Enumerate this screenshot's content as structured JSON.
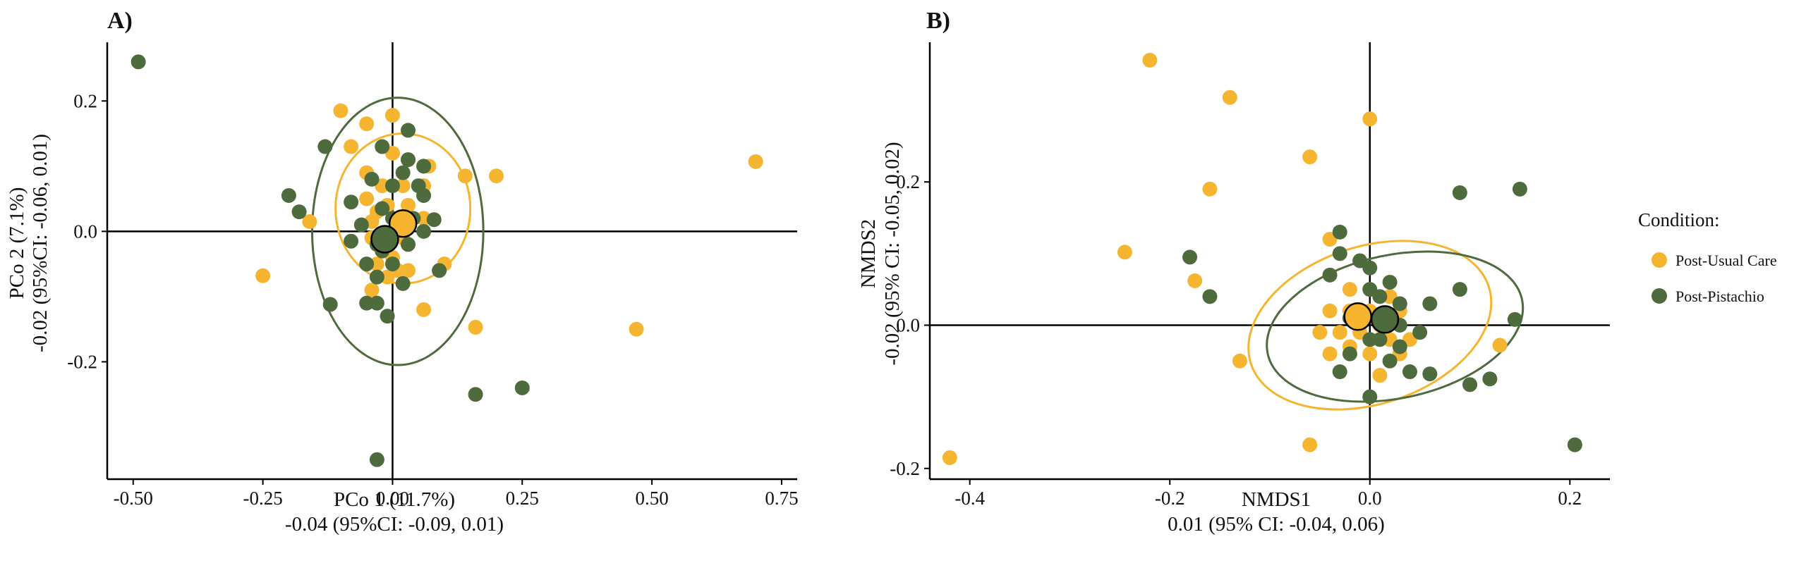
{
  "colors": {
    "usual_care": "#F6B530",
    "pistachio": "#4E6B3E",
    "axis": "#000000"
  },
  "legend": {
    "title": "Condition:",
    "items": [
      {
        "label": "Post-Usual Care",
        "color": "#F6B530"
      },
      {
        "label": "Post-Pistachio",
        "color": "#4E6B3E"
      }
    ]
  },
  "chart_data": [
    {
      "panel": "A)",
      "type": "scatter",
      "xlabel": "PCo 1 (11.7%)",
      "xlabel2": "-0.04 (95%CI: -0.09, 0.01)",
      "ylabel": "PCo 2 (7.1%)",
      "ylabel2": "-0.02 (95%CI: -0.06, 0.01)",
      "xlim": [
        -0.55,
        0.78
      ],
      "ylim": [
        -0.38,
        0.29
      ],
      "xticks": [
        -0.5,
        -0.25,
        0.0,
        0.25,
        0.5,
        0.75
      ],
      "xtick_labels": [
        "-0.50",
        "-0.25",
        "0.00",
        "0.25",
        "0.50",
        "0.75"
      ],
      "yticks": [
        -0.2,
        0.0,
        0.2
      ],
      "ytick_labels": [
        "-0.2",
        "0.0",
        "0.2"
      ],
      "series": [
        {
          "name": "Post-Usual Care",
          "color": "#F6B530",
          "points": [
            [
              -0.1,
              0.185
            ],
            [
              -0.05,
              0.165
            ],
            [
              0.0,
              0.178
            ],
            [
              -0.08,
              0.13
            ],
            [
              0.0,
              0.12
            ],
            [
              0.03,
              0.11
            ],
            [
              0.07,
              0.1
            ],
            [
              -0.05,
              0.09
            ],
            [
              -0.02,
              0.07
            ],
            [
              0.02,
              0.07
            ],
            [
              0.06,
              0.07
            ],
            [
              0.14,
              0.085
            ],
            [
              0.2,
              0.085
            ],
            [
              -0.05,
              0.05
            ],
            [
              -0.03,
              0.03
            ],
            [
              -0.01,
              0.04
            ],
            [
              0.03,
              0.04
            ],
            [
              0.06,
              0.02
            ],
            [
              -0.16,
              0.015
            ],
            [
              -0.04,
              0.015
            ],
            [
              0.0,
              0.0
            ],
            [
              0.02,
              -0.01
            ],
            [
              -0.04,
              -0.01
            ],
            [
              0.0,
              -0.04
            ],
            [
              -0.03,
              -0.05
            ],
            [
              0.01,
              -0.06
            ],
            [
              -0.03,
              -0.07
            ],
            [
              -0.01,
              -0.07
            ],
            [
              -0.04,
              -0.09
            ],
            [
              0.1,
              -0.05
            ],
            [
              0.03,
              -0.06
            ],
            [
              -0.25,
              -0.068
            ],
            [
              0.06,
              -0.12
            ],
            [
              0.16,
              -0.147
            ],
            [
              0.47,
              -0.15
            ],
            [
              0.7,
              0.107
            ]
          ]
        },
        {
          "name": "Post-Pistachio",
          "color": "#4E6B3E",
          "points": [
            [
              -0.49,
              0.26
            ],
            [
              -0.13,
              0.13
            ],
            [
              0.03,
              0.155
            ],
            [
              -0.02,
              0.13
            ],
            [
              0.03,
              0.11
            ],
            [
              0.06,
              0.1
            ],
            [
              0.02,
              0.09
            ],
            [
              -0.04,
              0.08
            ],
            [
              0.0,
              0.07
            ],
            [
              0.05,
              0.07
            ],
            [
              -0.2,
              0.055
            ],
            [
              -0.08,
              0.045
            ],
            [
              0.06,
              0.055
            ],
            [
              -0.18,
              0.03
            ],
            [
              -0.02,
              0.035
            ],
            [
              0.0,
              0.02
            ],
            [
              0.04,
              0.02
            ],
            [
              0.08,
              0.018
            ],
            [
              -0.06,
              0.01
            ],
            [
              0.06,
              0.0
            ],
            [
              -0.08,
              -0.015
            ],
            [
              -0.03,
              -0.02
            ],
            [
              0.03,
              -0.02
            ],
            [
              -0.02,
              -0.03
            ],
            [
              -0.05,
              -0.05
            ],
            [
              0.0,
              -0.05
            ],
            [
              -0.03,
              -0.07
            ],
            [
              0.02,
              -0.08
            ],
            [
              0.09,
              -0.06
            ],
            [
              -0.05,
              -0.11
            ],
            [
              -0.03,
              -0.11
            ],
            [
              -0.01,
              -0.13
            ],
            [
              -0.12,
              -0.112
            ],
            [
              0.16,
              -0.25
            ],
            [
              0.25,
              -0.24
            ],
            [
              -0.03,
              -0.35
            ]
          ]
        }
      ],
      "centroids": [
        {
          "name": "Post-Usual Care",
          "color": "#F6B530",
          "x": 0.02,
          "y": 0.012
        },
        {
          "name": "Post-Pistachio",
          "color": "#4E6B3E",
          "x": -0.015,
          "y": -0.012
        }
      ],
      "ellipses": [
        {
          "name": "Post-Usual Care",
          "color": "#F6B530",
          "cx": 0.02,
          "cy": 0.035,
          "rx": 0.13,
          "ry": 0.115,
          "angle": 0
        },
        {
          "name": "Post-Pistachio",
          "color": "#4E6B3E",
          "cx": 0.01,
          "cy": 0.0,
          "rx": 0.165,
          "ry": 0.205,
          "angle": 0
        }
      ]
    },
    {
      "panel": "B)",
      "type": "scatter",
      "xlabel": "NMDS1",
      "xlabel2": "0.01 (95% CI: -0.04, 0.06)",
      "ylabel": "NMDS2",
      "ylabel2": "-0.02 (95% CI: -0.05, 0.02)",
      "xlim": [
        -0.44,
        0.24
      ],
      "ylim": [
        -0.215,
        0.395
      ],
      "xticks": [
        -0.4,
        -0.2,
        0.0,
        0.2
      ],
      "xtick_labels": [
        "-0.4",
        "-0.2",
        "0.0",
        "0.2"
      ],
      "yticks": [
        -0.2,
        0.0,
        0.2
      ],
      "ytick_labels": [
        "-0.2",
        "0.0",
        "0.2"
      ],
      "series": [
        {
          "name": "Post-Usual Care",
          "color": "#F6B530",
          "points": [
            [
              -0.22,
              0.37
            ],
            [
              -0.14,
              0.318
            ],
            [
              0.0,
              0.288
            ],
            [
              -0.06,
              0.235
            ],
            [
              -0.16,
              0.19
            ],
            [
              -0.245,
              0.102
            ],
            [
              -0.175,
              0.062
            ],
            [
              -0.04,
              0.12
            ],
            [
              0.0,
              0.05
            ],
            [
              -0.02,
              0.05
            ],
            [
              0.02,
              0.04
            ],
            [
              -0.04,
              0.02
            ],
            [
              -0.02,
              0.02
            ],
            [
              0.0,
              0.02
            ],
            [
              0.03,
              0.02
            ],
            [
              0.01,
              0.0
            ],
            [
              -0.05,
              -0.01
            ],
            [
              -0.03,
              -0.01
            ],
            [
              -0.01,
              -0.01
            ],
            [
              0.02,
              -0.02
            ],
            [
              0.04,
              -0.02
            ],
            [
              -0.04,
              -0.04
            ],
            [
              -0.02,
              -0.03
            ],
            [
              0.0,
              -0.04
            ],
            [
              0.03,
              -0.04
            ],
            [
              -0.13,
              -0.05
            ],
            [
              0.01,
              -0.07
            ],
            [
              0.13,
              -0.028
            ],
            [
              -0.06,
              -0.167
            ],
            [
              -0.42,
              -0.185
            ]
          ]
        },
        {
          "name": "Post-Pistachio",
          "color": "#4E6B3E",
          "points": [
            [
              0.15,
              0.19
            ],
            [
              0.09,
              0.185
            ],
            [
              -0.03,
              0.13
            ],
            [
              -0.03,
              0.1
            ],
            [
              -0.01,
              0.09
            ],
            [
              0.0,
              0.08
            ],
            [
              0.02,
              0.06
            ],
            [
              -0.04,
              0.07
            ],
            [
              -0.18,
              0.095
            ],
            [
              -0.16,
              0.04
            ],
            [
              0.0,
              0.05
            ],
            [
              0.01,
              0.04
            ],
            [
              0.03,
              0.03
            ],
            [
              0.06,
              0.03
            ],
            [
              0.09,
              0.05
            ],
            [
              -0.02,
              0.01
            ],
            [
              0.01,
              0.01
            ],
            [
              0.03,
              0.0
            ],
            [
              0.05,
              -0.01
            ],
            [
              0.01,
              -0.02
            ],
            [
              0.03,
              -0.03
            ],
            [
              -0.02,
              -0.04
            ],
            [
              0.0,
              -0.02
            ],
            [
              0.02,
              -0.05
            ],
            [
              -0.03,
              -0.065
            ],
            [
              0.04,
              -0.065
            ],
            [
              0.06,
              -0.068
            ],
            [
              0.1,
              -0.083
            ],
            [
              0.12,
              -0.075
            ],
            [
              0.145,
              0.008
            ],
            [
              0.0,
              -0.1
            ],
            [
              0.205,
              -0.167
            ]
          ]
        }
      ],
      "centroids": [
        {
          "name": "Post-Usual Care",
          "color": "#F6B530",
          "x": -0.012,
          "y": 0.012
        },
        {
          "name": "Post-Pistachio",
          "color": "#4E6B3E",
          "x": 0.015,
          "y": 0.008
        }
      ],
      "ellipses": [
        {
          "name": "Post-Usual Care",
          "color": "#F6B530",
          "cx": 0.0,
          "cy": 0.0,
          "rx": 0.125,
          "ry": 0.11,
          "angle": -18
        },
        {
          "name": "Post-Pistachio",
          "color": "#4E6B3E",
          "cx": 0.025,
          "cy": -0.002,
          "rx": 0.13,
          "ry": 0.1,
          "angle": -12
        }
      ]
    }
  ]
}
